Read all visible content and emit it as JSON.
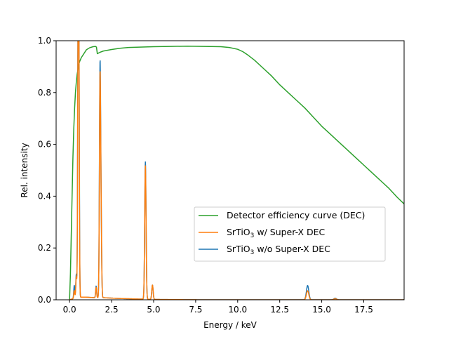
{
  "chart_data": {
    "type": "line",
    "xlabel": "Energy / keV",
    "ylabel": "Rel. intensity",
    "xlim": [
      -0.8,
      19.9
    ],
    "ylim": [
      0,
      1.0
    ],
    "xticks": [
      0.0,
      2.5,
      5.0,
      7.5,
      10.0,
      12.5,
      15.0,
      17.5
    ],
    "xtick_labels": [
      "0.0",
      "2.5",
      "5.0",
      "7.5",
      "10.0",
      "12.5",
      "15.0",
      "17.5"
    ],
    "yticks": [
      0.0,
      0.2,
      0.4,
      0.6,
      0.8,
      1.0
    ],
    "ytick_labels": [
      "0.0",
      "0.2",
      "0.4",
      "0.6",
      "0.8",
      "1.0"
    ],
    "legend_position": "center-right",
    "series": [
      {
        "name": "Detector efficiency curve (DEC)",
        "color": "#2ca02c",
        "points": [
          [
            0.0,
            0.0
          ],
          [
            0.05,
            0.1
          ],
          [
            0.1,
            0.25
          ],
          [
            0.15,
            0.4
          ],
          [
            0.2,
            0.55
          ],
          [
            0.25,
            0.66
          ],
          [
            0.3,
            0.74
          ],
          [
            0.35,
            0.8
          ],
          [
            0.4,
            0.84
          ],
          [
            0.45,
            0.87
          ],
          [
            0.5,
            0.89
          ],
          [
            0.55,
            0.91
          ],
          [
            0.6,
            0.92
          ],
          [
            0.7,
            0.935
          ],
          [
            0.8,
            0.945
          ],
          [
            0.9,
            0.955
          ],
          [
            1.0,
            0.965
          ],
          [
            1.2,
            0.973
          ],
          [
            1.4,
            0.977
          ],
          [
            1.55,
            0.978
          ],
          [
            1.6,
            0.975
          ],
          [
            1.65,
            0.95
          ],
          [
            1.8,
            0.955
          ],
          [
            2.0,
            0.96
          ],
          [
            2.5,
            0.966
          ],
          [
            3.0,
            0.971
          ],
          [
            3.5,
            0.974
          ],
          [
            4.0,
            0.975
          ],
          [
            4.5,
            0.976
          ],
          [
            5.0,
            0.977
          ],
          [
            6.0,
            0.978
          ],
          [
            7.0,
            0.979
          ],
          [
            8.0,
            0.978
          ],
          [
            9.0,
            0.977
          ],
          [
            9.5,
            0.974
          ],
          [
            10.0,
            0.967
          ],
          [
            10.3,
            0.958
          ],
          [
            10.6,
            0.945
          ],
          [
            11.0,
            0.925
          ],
          [
            11.5,
            0.895
          ],
          [
            12.0,
            0.865
          ],
          [
            12.5,
            0.83
          ],
          [
            13.0,
            0.8
          ],
          [
            13.5,
            0.77
          ],
          [
            14.0,
            0.74
          ],
          [
            14.5,
            0.705
          ],
          [
            15.0,
            0.67
          ],
          [
            15.5,
            0.64
          ],
          [
            16.0,
            0.61
          ],
          [
            16.5,
            0.58
          ],
          [
            17.0,
            0.55
          ],
          [
            17.5,
            0.52
          ],
          [
            18.0,
            0.49
          ],
          [
            18.5,
            0.46
          ],
          [
            19.0,
            0.43
          ],
          [
            19.5,
            0.395
          ],
          [
            19.9,
            0.37
          ]
        ]
      },
      {
        "name": "SrTiO$_3$ w/o Super-X DEC",
        "color": "#1f77b4",
        "peaks": [
          [
            0.28,
            0.05,
            0.03
          ],
          [
            0.4,
            0.09,
            0.03
          ],
          [
            0.51,
            1.0,
            0.03
          ],
          [
            0.55,
            0.92,
            0.03
          ],
          [
            1.58,
            0.045,
            0.03
          ],
          [
            1.81,
            0.84,
            0.035
          ],
          [
            1.87,
            0.3,
            0.035
          ],
          [
            4.51,
            0.53,
            0.04
          ],
          [
            4.93,
            0.055,
            0.04
          ],
          [
            14.16,
            0.055,
            0.07
          ],
          [
            15.8,
            0.006,
            0.08
          ]
        ],
        "baseline": [
          [
            0.0,
            0.0
          ],
          [
            0.5,
            0.01
          ],
          [
            1.0,
            0.01
          ],
          [
            1.5,
            0.008
          ],
          [
            2.0,
            0.008
          ],
          [
            3.0,
            0.005
          ],
          [
            4.0,
            0.003
          ],
          [
            5.5,
            0.001
          ],
          [
            8.0,
            0.0
          ],
          [
            19.9,
            0.0
          ]
        ]
      },
      {
        "name": "SrTiO$_3$ w/ Super-X DEC",
        "color": "#ff7f0e",
        "peaks": [
          [
            0.28,
            0.03,
            0.03
          ],
          [
            0.4,
            0.08,
            0.03
          ],
          [
            0.51,
            0.89,
            0.03
          ],
          [
            0.55,
            0.82,
            0.03
          ],
          [
            1.58,
            0.04,
            0.03
          ],
          [
            1.81,
            0.8,
            0.035
          ],
          [
            1.87,
            0.29,
            0.035
          ],
          [
            4.51,
            0.515,
            0.04
          ],
          [
            4.93,
            0.055,
            0.04
          ],
          [
            14.16,
            0.035,
            0.07
          ],
          [
            15.8,
            0.004,
            0.08
          ]
        ],
        "baseline": [
          [
            0.0,
            0.0
          ],
          [
            0.5,
            0.01
          ],
          [
            1.0,
            0.01
          ],
          [
            1.5,
            0.008
          ],
          [
            2.0,
            0.008
          ],
          [
            3.0,
            0.005
          ],
          [
            4.0,
            0.003
          ],
          [
            5.5,
            0.001
          ],
          [
            8.0,
            0.0
          ],
          [
            19.9,
            0.0
          ]
        ]
      }
    ],
    "legend": {
      "entries": [
        {
          "label": "Detector efficiency curve (DEC)",
          "color": "#2ca02c"
        },
        {
          "label_main": "SrTiO",
          "label_sub": "3",
          "label_rest": " w/ Super-X DEC",
          "color": "#ff7f0e"
        },
        {
          "label_main": "SrTiO",
          "label_sub": "3",
          "label_rest": " w/o Super-X DEC",
          "color": "#1f77b4"
        }
      ]
    }
  }
}
